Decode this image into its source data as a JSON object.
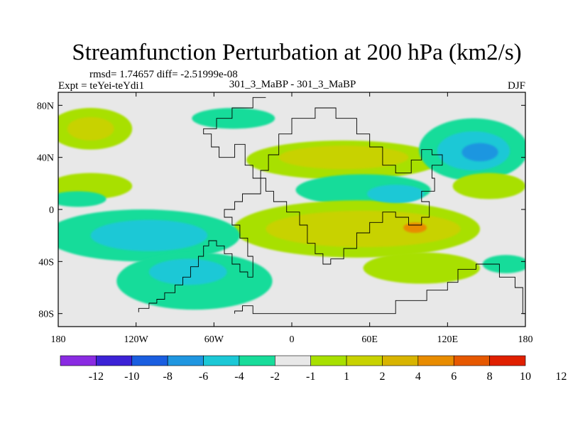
{
  "chart_data": {
    "type": "heatmap",
    "title": "Streamfunction Perturbation at 200 hPa (km2/s)",
    "stats": "rmsd= 1.74657 diff= -2.51999e-08",
    "experiment": "Expt = teYei-teYdi1",
    "case": "301_3_MaBP - 301_3_MaBP",
    "season": "DJF",
    "x_ticks": [
      {
        "value": -180,
        "label": "180"
      },
      {
        "value": -120,
        "label": "120W"
      },
      {
        "value": -60,
        "label": "60W"
      },
      {
        "value": 0,
        "label": "0"
      },
      {
        "value": 60,
        "label": "60E"
      },
      {
        "value": 120,
        "label": "120E"
      },
      {
        "value": 180,
        "label": "180"
      }
    ],
    "y_ticks": [
      {
        "value": 80,
        "label": "80N"
      },
      {
        "value": 40,
        "label": "40N"
      },
      {
        "value": 0,
        "label": "0"
      },
      {
        "value": -40,
        "label": "40S"
      },
      {
        "value": -80,
        "label": "80S"
      }
    ],
    "xlim": [
      -180,
      180
    ],
    "ylim": [
      -90,
      90
    ],
    "colorbar": {
      "colors": [
        "#8a2be2",
        "#3c22d6",
        "#1a5ee0",
        "#1f96e0",
        "#1cc8d6",
        "#18dc9a",
        "#e8e8e8",
        "#a8e000",
        "#c8d200",
        "#d8b400",
        "#e88c00",
        "#e65800",
        "#e02000"
      ],
      "labels": [
        "-12",
        "-10",
        "-8",
        "-6",
        "-4",
        "-2",
        "-1",
        "1",
        "2",
        "4",
        "6",
        "8",
        "10",
        "12"
      ]
    },
    "features": [
      {
        "lon": -155,
        "lat": 62,
        "rx": 32,
        "ry": 16,
        "level": 1
      },
      {
        "lon": -155,
        "lat": 62,
        "rx": 18,
        "ry": 9,
        "level": 2
      },
      {
        "lon": -45,
        "lat": 70,
        "rx": 32,
        "ry": 8,
        "level": -1
      },
      {
        "lon": 40,
        "lat": 38,
        "rx": 75,
        "ry": 15,
        "level": 1
      },
      {
        "lon": 40,
        "lat": 40,
        "rx": 50,
        "ry": 9,
        "level": 2
      },
      {
        "lon": 140,
        "lat": 46,
        "rx": 42,
        "ry": 24,
        "level": -1
      },
      {
        "lon": 140,
        "lat": 45,
        "rx": 28,
        "ry": 15,
        "level": -2
      },
      {
        "lon": 145,
        "lat": 44,
        "rx": 14,
        "ry": 7,
        "level": -3
      },
      {
        "lon": 152,
        "lat": 18,
        "rx": 28,
        "ry": 10,
        "level": 1
      },
      {
        "lon": -155,
        "lat": 18,
        "rx": 32,
        "ry": 10,
        "level": 1
      },
      {
        "lon": -165,
        "lat": 8,
        "rx": 22,
        "ry": 6,
        "level": -1
      },
      {
        "lon": 55,
        "lat": 15,
        "rx": 52,
        "ry": 12,
        "level": -1
      },
      {
        "lon": 80,
        "lat": 12,
        "rx": 22,
        "ry": 7,
        "level": -2
      },
      {
        "lon": 50,
        "lat": -15,
        "rx": 95,
        "ry": 22,
        "level": 1
      },
      {
        "lon": 55,
        "lat": -15,
        "rx": 75,
        "ry": 14,
        "level": 2
      },
      {
        "lon": 95,
        "lat": -14,
        "rx": 9,
        "ry": 4,
        "level": 4
      },
      {
        "lon": 100,
        "lat": -45,
        "rx": 45,
        "ry": 12,
        "level": 1
      },
      {
        "lon": 165,
        "lat": -42,
        "rx": 18,
        "ry": 7,
        "level": -1
      },
      {
        "lon": -115,
        "lat": -20,
        "rx": 75,
        "ry": 20,
        "level": -1
      },
      {
        "lon": -110,
        "lat": -20,
        "rx": 45,
        "ry": 12,
        "level": -2
      },
      {
        "lon": -75,
        "lat": -55,
        "rx": 60,
        "ry": 22,
        "level": -1
      },
      {
        "lon": -80,
        "lat": -48,
        "rx": 30,
        "ry": 10,
        "level": -2
      }
    ],
    "land_outline_points": [
      [
        -118,
        -79
      ],
      [
        -118,
        -76
      ],
      [
        -110,
        -76
      ],
      [
        -110,
        -72
      ],
      [
        -104,
        -72
      ],
      [
        -104,
        -69
      ],
      [
        -98,
        -69
      ],
      [
        -98,
        -64
      ],
      [
        -90,
        -64
      ],
      [
        -90,
        -58
      ],
      [
        -84,
        -58
      ],
      [
        -84,
        -52
      ],
      [
        -78,
        -52
      ],
      [
        -78,
        -44
      ],
      [
        -72,
        -44
      ],
      [
        -72,
        -36
      ],
      [
        -68,
        -36
      ],
      [
        -68,
        -28
      ],
      [
        -64,
        -28
      ],
      [
        -64,
        -24
      ],
      [
        -58,
        -24
      ],
      [
        -58,
        -28
      ],
      [
        -52,
        -28
      ],
      [
        -52,
        -34
      ],
      [
        -46,
        -34
      ],
      [
        -46,
        -42
      ],
      [
        -40,
        -42
      ],
      [
        -40,
        -48
      ],
      [
        -34,
        -48
      ],
      [
        -34,
        -52
      ],
      [
        -30,
        -52
      ],
      [
        -30,
        -36
      ],
      [
        -34,
        -36
      ],
      [
        -34,
        -22
      ],
      [
        -40,
        -22
      ],
      [
        -40,
        -12
      ],
      [
        -46,
        -12
      ],
      [
        -46,
        -6
      ],
      [
        -52,
        -6
      ],
      [
        -52,
        0
      ],
      [
        -44,
        0
      ],
      [
        -44,
        6
      ],
      [
        -38,
        6
      ],
      [
        -38,
        12
      ],
      [
        -24,
        12
      ],
      [
        -24,
        30
      ],
      [
        -18,
        30
      ],
      [
        -18,
        42
      ],
      [
        -10,
        42
      ],
      [
        -10,
        58
      ],
      [
        0,
        58
      ],
      [
        0,
        70
      ],
      [
        18,
        70
      ],
      [
        18,
        78
      ],
      [
        34,
        78
      ],
      [
        34,
        70
      ],
      [
        50,
        70
      ],
      [
        50,
        58
      ],
      [
        60,
        58
      ],
      [
        60,
        48
      ],
      [
        70,
        48
      ],
      [
        70,
        34
      ],
      [
        80,
        34
      ],
      [
        80,
        28
      ],
      [
        92,
        28
      ],
      [
        92,
        38
      ],
      [
        100,
        38
      ],
      [
        100,
        46
      ],
      [
        108,
        46
      ],
      [
        108,
        42
      ],
      [
        116,
        42
      ],
      [
        116,
        34
      ],
      [
        108,
        34
      ],
      [
        108,
        24
      ],
      [
        110,
        24
      ],
      [
        110,
        14
      ],
      [
        100,
        14
      ],
      [
        100,
        6
      ],
      [
        106,
        6
      ],
      [
        106,
        -6
      ],
      [
        100,
        -6
      ],
      [
        100,
        -12
      ],
      [
        90,
        -12
      ],
      [
        90,
        -6
      ],
      [
        80,
        -6
      ],
      [
        80,
        -2
      ],
      [
        70,
        -2
      ],
      [
        70,
        -10
      ],
      [
        60,
        -10
      ],
      [
        60,
        -18
      ],
      [
        50,
        -18
      ],
      [
        50,
        -30
      ],
      [
        40,
        -30
      ],
      [
        40,
        -38
      ],
      [
        30,
        -38
      ],
      [
        30,
        -42
      ],
      [
        24,
        -42
      ],
      [
        24,
        -34
      ],
      [
        18,
        -34
      ],
      [
        18,
        -26
      ],
      [
        12,
        -26
      ],
      [
        12,
        -12
      ],
      [
        6,
        -12
      ],
      [
        6,
        -2
      ],
      [
        -4,
        -2
      ],
      [
        -4,
        6
      ],
      [
        -14,
        6
      ],
      [
        -14,
        14
      ],
      [
        -20,
        14
      ],
      [
        -20,
        24
      ],
      [
        -30,
        24
      ],
      [
        -30,
        34
      ],
      [
        -36,
        34
      ],
      [
        -36,
        50
      ],
      [
        -44,
        50
      ],
      [
        -44,
        40
      ],
      [
        -56,
        40
      ],
      [
        -56,
        48
      ],
      [
        -62,
        48
      ],
      [
        -62,
        58
      ],
      [
        -68,
        58
      ],
      [
        -68,
        62
      ],
      [
        -58,
        62
      ],
      [
        -58,
        70
      ],
      [
        -46,
        70
      ],
      [
        -46,
        78
      ],
      [
        -30,
        78
      ],
      [
        -30,
        86
      ],
      [
        -20,
        86
      ]
    ],
    "antarctic_outline_points": [
      [
        -44,
        -80
      ],
      [
        -44,
        -78
      ],
      [
        -38,
        -78
      ],
      [
        -38,
        -74
      ],
      [
        -30,
        -74
      ],
      [
        -30,
        -80
      ],
      [
        0,
        -80
      ],
      [
        40,
        -80
      ],
      [
        80,
        -80
      ],
      [
        80,
        -70
      ],
      [
        104,
        -70
      ],
      [
        104,
        -62
      ],
      [
        120,
        -62
      ],
      [
        120,
        -56
      ],
      [
        128,
        -56
      ],
      [
        128,
        -46
      ],
      [
        142,
        -46
      ],
      [
        142,
        -42
      ],
      [
        160,
        -42
      ],
      [
        160,
        -52
      ],
      [
        172,
        -52
      ],
      [
        172,
        -60
      ],
      [
        178,
        -60
      ],
      [
        178,
        -80
      ],
      [
        180,
        -80
      ]
    ]
  }
}
